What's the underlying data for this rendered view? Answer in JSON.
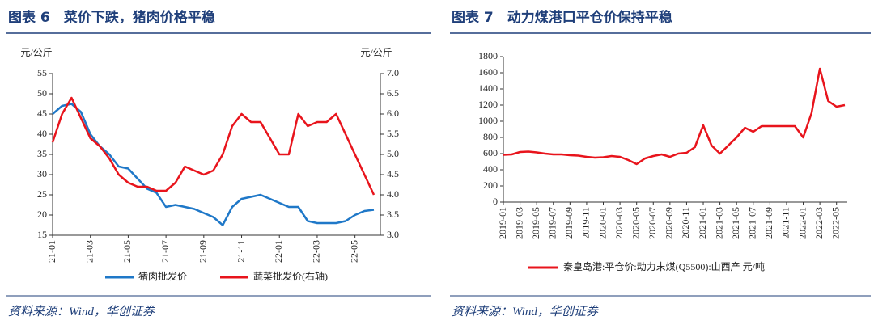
{
  "chart_data": [
    {
      "type": "line",
      "title": "图表 6　菜价下跌，猪肉价格平稳",
      "y_label": "元/公斤",
      "y2_label": "元/公斤",
      "categories": [
        "21-01",
        null,
        null,
        null,
        "21-03",
        null,
        null,
        null,
        "21-05",
        null,
        null,
        null,
        "21-07",
        null,
        null,
        null,
        "21-09",
        null,
        null,
        null,
        "21-11",
        null,
        null,
        null,
        "22-01",
        null,
        null,
        null,
        "22-03",
        null,
        null,
        null,
        "22-05",
        null,
        null
      ],
      "ylim": [
        15,
        55
      ],
      "yticks": [
        15,
        20,
        25,
        30,
        35,
        40,
        45,
        50,
        55
      ],
      "y2lim": [
        3,
        7
      ],
      "y2ticks": [
        {
          "value": 3,
          "label": "3.0"
        },
        3.5,
        {
          "value": 4,
          "label": "4.0"
        },
        4.5,
        {
          "value": 5,
          "label": "5.0"
        },
        5.5,
        {
          "value": 6,
          "label": "6.0"
        },
        6.5,
        {
          "value": 7,
          "label": "7.0"
        }
      ],
      "series": [
        {
          "name": "猪肉批发价",
          "color": "#1f78c8",
          "values": [
            45,
            47,
            47.5,
            45.5,
            40,
            37,
            35,
            32,
            31.5,
            29,
            26.5,
            25.5,
            22,
            22.5,
            22,
            21.5,
            20.5,
            19.5,
            17.5,
            22,
            24,
            24.5,
            25,
            24,
            23,
            22,
            22,
            18.5,
            18,
            18,
            18,
            18.5,
            20,
            21,
            21.3
          ]
        },
        {
          "name": "蔬菜批发价(右轴)",
          "color": "#e8141c",
          "axis": "y2",
          "values": [
            5.3,
            6.0,
            6.4,
            5.9,
            5.4,
            5.2,
            4.9,
            4.5,
            4.3,
            4.2,
            4.2,
            4.1,
            4.1,
            4.3,
            4.7,
            4.6,
            4.5,
            4.6,
            5.0,
            5.7,
            6.0,
            5.8,
            5.8,
            5.4,
            5.0,
            5.0,
            6.0,
            5.7,
            5.8,
            5.8,
            6.0,
            5.5,
            5.0,
            4.5,
            4.0
          ]
        }
      ],
      "source": "资料来源：Wind，华创证券"
    },
    {
      "type": "line",
      "title": "图表 7　动力煤港口平仓价保持平稳",
      "categories": [
        "2019-01",
        null,
        "2019-03",
        null,
        "2019-05",
        null,
        "2019-07",
        null,
        "2019-09",
        null,
        "2019-11",
        null,
        "2020-01",
        null,
        "2020-03",
        null,
        "2020-05",
        null,
        "2020-07",
        null,
        "2020-09",
        null,
        "2020-11",
        null,
        "2021-01",
        null,
        "2021-03",
        null,
        "2021-05",
        null,
        "2021-07",
        null,
        "2021-09",
        null,
        "2021-11",
        null,
        "2022-01",
        null,
        "2022-03",
        null,
        "2022-05",
        null
      ],
      "ylim": [
        0,
        1800
      ],
      "yticks": [
        0,
        200,
        400,
        600,
        800,
        1000,
        1200,
        1400,
        1600,
        1800
      ],
      "series": [
        {
          "name": "秦皇岛港:平仓价:动力末煤(Q5500):山西产 元/吨",
          "color": "#e8141c",
          "values": [
            585,
            590,
            620,
            625,
            615,
            600,
            590,
            590,
            580,
            575,
            560,
            550,
            555,
            570,
            560,
            520,
            470,
            540,
            570,
            590,
            560,
            600,
            610,
            680,
            950,
            700,
            600,
            700,
            800,
            920,
            870,
            940,
            940,
            940,
            940,
            940,
            800,
            1100,
            1650,
            1250,
            1180,
            1200
          ]
        }
      ],
      "source": "资料来源：Wind，华创证券"
    }
  ]
}
